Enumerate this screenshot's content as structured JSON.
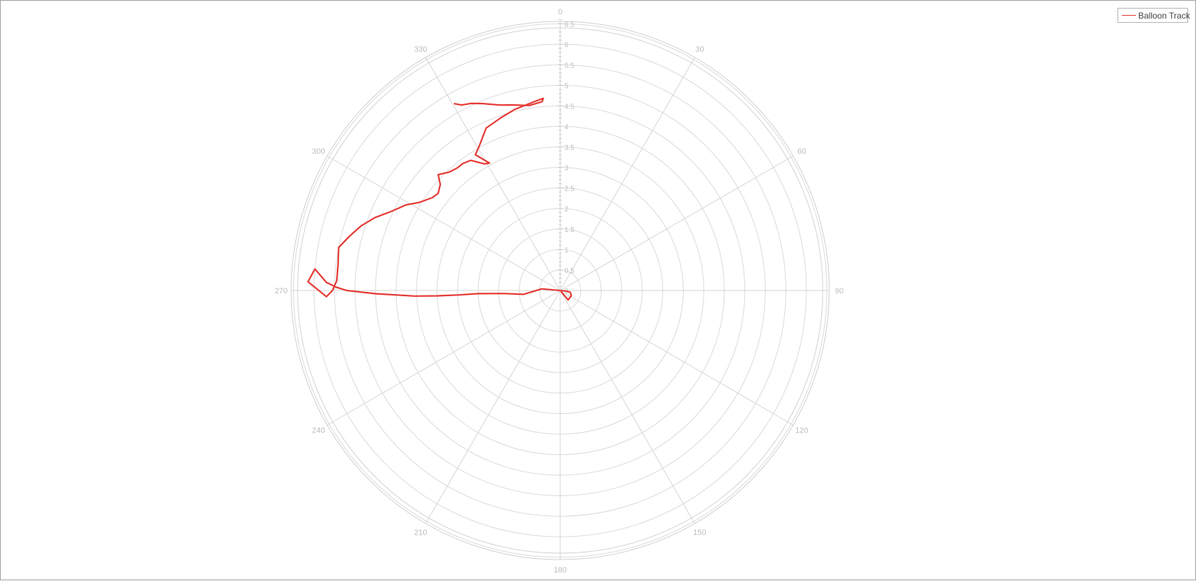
{
  "chart_data": {
    "type": "line",
    "coordinate_system": "polar",
    "angle_unit": "degrees",
    "angle_ticks": [
      0,
      30,
      60,
      90,
      120,
      150,
      180,
      210,
      240,
      270,
      300,
      330
    ],
    "radial_ticks": [
      "0",
      "0.5",
      "1",
      "1.5",
      "2",
      "2.5",
      "3",
      "3.5",
      "4",
      "4.5",
      "5",
      "5.5",
      "6",
      "6.5"
    ],
    "radial_range": [
      0,
      6.6
    ],
    "grid": true,
    "legend": {
      "placement": "top-right"
    },
    "series": [
      {
        "name": "Balloon Track",
        "color": "#e53935",
        "points": [
          [
            0,
            0
          ],
          [
            140,
            0.3
          ],
          [
            115,
            0.3
          ],
          [
            100,
            0.25
          ],
          [
            95,
            0.15
          ],
          [
            275,
            0.45
          ],
          [
            264,
            0.9
          ],
          [
            267,
            1.4
          ],
          [
            267.8,
            2.0
          ],
          [
            267.5,
            2.5
          ],
          [
            267.5,
            3.0
          ],
          [
            267.8,
            3.55
          ],
          [
            269,
            4.5
          ],
          [
            270,
            5.2
          ],
          [
            270.8,
            5.45
          ],
          [
            272,
            5.7
          ],
          [
            275,
            6.0
          ],
          [
            272,
            6.15
          ],
          [
            268.5,
            5.7
          ],
          [
            270,
            5.55
          ],
          [
            272.5,
            5.45
          ],
          [
            276.8,
            5.45
          ],
          [
            281,
            5.5
          ],
          [
            284.5,
            5.3
          ],
          [
            288,
            5.1
          ],
          [
            291.5,
            4.85
          ],
          [
            295,
            4.55
          ],
          [
            299,
            4.3
          ],
          [
            302,
            4.05
          ],
          [
            306,
            3.85
          ],
          [
            308.5,
            3.8
          ],
          [
            311.5,
            3.9
          ],
          [
            313.5,
            4.1
          ],
          [
            317,
            3.95
          ],
          [
            320,
            3.9
          ],
          [
            322.5,
            3.9
          ],
          [
            325.5,
            3.85
          ],
          [
            329,
            3.6
          ],
          [
            331,
            3.55
          ],
          [
            328,
            3.9
          ],
          [
            331,
            4.05
          ],
          [
            335.5,
            4.35
          ],
          [
            341,
            4.45
          ],
          [
            346,
            4.55
          ],
          [
            352.5,
            4.65
          ],
          [
            355,
            4.7
          ],
          [
            354.5,
            4.62
          ],
          [
            350.5,
            4.57
          ],
          [
            345.5,
            4.67
          ],
          [
            342,
            4.75
          ],
          [
            337.5,
            4.93
          ],
          [
            334.5,
            5.05
          ],
          [
            332,
            5.12
          ],
          [
            330.5,
            5.23
          ]
        ]
      }
    ]
  }
}
